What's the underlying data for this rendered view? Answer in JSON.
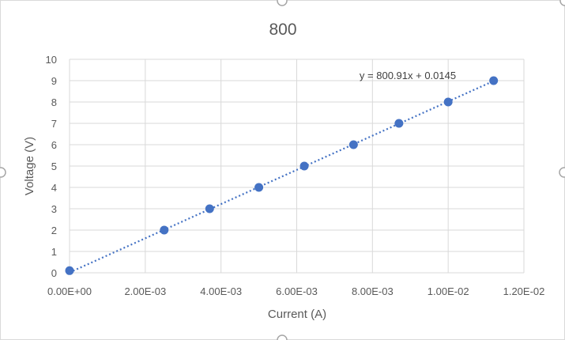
{
  "chart_data": {
    "type": "scatter",
    "title": "800",
    "xlabel": "Current (A)",
    "ylabel": "Voltage (V)",
    "xlim": [
      0,
      0.012
    ],
    "ylim": [
      0,
      10
    ],
    "x_ticks": [
      0,
      0.002,
      0.004,
      0.006,
      0.008,
      0.01,
      0.012
    ],
    "x_tick_labels": [
      "0.00E+00",
      "2.00E-03",
      "4.00E-03",
      "6.00E-03",
      "8.00E-03",
      "1.00E-02",
      "1.20E-02"
    ],
    "y_ticks": [
      0,
      1,
      2,
      3,
      4,
      5,
      6,
      7,
      8,
      9,
      10
    ],
    "y_tick_labels": [
      "0",
      "1",
      "2",
      "3",
      "4",
      "5",
      "6",
      "7",
      "8",
      "9",
      "10"
    ],
    "grid": true,
    "series": [
      {
        "x": [
          0,
          0.0025,
          0.0037,
          0.005,
          0.0062,
          0.0075,
          0.0087,
          0.01,
          0.0112
        ],
        "y": [
          0.1,
          2,
          3,
          4,
          5,
          6,
          7,
          8,
          9
        ],
        "color": "#4472c4",
        "trendline": {
          "type": "linear",
          "slope": 800.91,
          "intercept": 0.0145,
          "equation": "y = 800.91x + 0.0145",
          "style": "dotted"
        }
      }
    ]
  }
}
